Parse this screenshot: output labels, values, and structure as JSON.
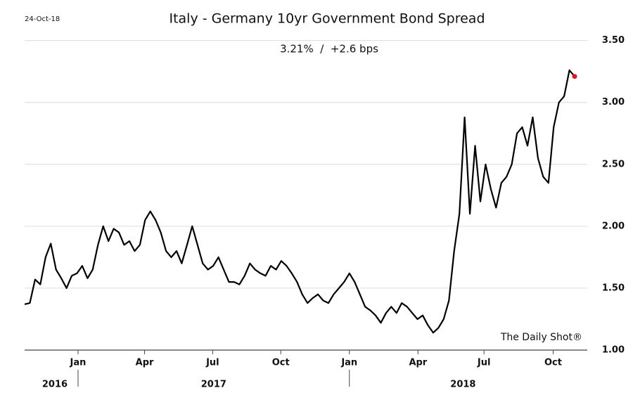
{
  "chart_data": {
    "type": "line",
    "date_label": "24-Oct-18",
    "title": "Italy - Germany 10yr Government Bond Spread",
    "subtitle": "3.21%  /  +2.6 bps",
    "source": "The Daily Shot®",
    "categories": [
      null,
      null,
      null,
      null,
      null,
      null,
      null,
      null,
      null,
      null,
      null,
      null,
      null,
      null,
      null,
      null,
      null,
      null,
      null,
      null,
      null,
      null,
      null,
      null,
      null,
      null,
      null,
      null,
      null,
      null,
      null,
      null,
      null,
      null,
      null,
      null,
      null,
      null,
      null,
      null,
      null,
      null,
      null,
      null,
      null,
      null,
      null,
      null,
      null,
      null,
      null,
      null,
      null,
      null,
      null,
      null,
      null,
      null,
      null,
      null,
      null,
      null,
      null,
      null,
      null,
      null,
      null,
      null,
      null,
      null,
      null,
      null,
      null,
      null,
      null,
      null,
      null,
      null,
      null,
      null,
      null,
      null,
      null,
      null,
      null,
      null,
      null,
      null,
      null,
      null,
      null,
      null,
      null,
      null,
      null,
      null,
      null,
      null,
      null,
      null,
      null,
      null,
      null,
      null,
      null,
      null
    ],
    "series": [
      {
        "name": "Italy - Germany 10yr spread",
        "color": "#000000",
        "last_point_color": "#e8141c",
        "values": [
          1.37,
          1.38,
          1.57,
          1.53,
          1.75,
          1.86,
          1.65,
          1.58,
          1.5,
          1.6,
          1.62,
          1.68,
          1.58,
          1.65,
          1.85,
          2.0,
          1.88,
          1.98,
          1.95,
          1.85,
          1.88,
          1.8,
          1.85,
          2.05,
          2.12,
          2.05,
          1.95,
          1.8,
          1.75,
          1.8,
          1.7,
          1.85,
          2.0,
          1.85,
          1.7,
          1.65,
          1.68,
          1.75,
          1.65,
          1.55,
          1.55,
          1.53,
          1.6,
          1.7,
          1.65,
          1.62,
          1.6,
          1.68,
          1.65,
          1.72,
          1.68,
          1.62,
          1.55,
          1.45,
          1.38,
          1.42,
          1.45,
          1.4,
          1.38,
          1.45,
          1.5,
          1.55,
          1.62,
          1.55,
          1.45,
          1.35,
          1.32,
          1.28,
          1.22,
          1.3,
          1.35,
          1.3,
          1.38,
          1.35,
          1.3,
          1.25,
          1.28,
          1.2,
          1.14,
          1.18,
          1.25,
          1.4,
          1.8,
          2.1,
          2.88,
          2.1,
          2.65,
          2.2,
          2.5,
          2.3,
          2.15,
          2.35,
          2.4,
          2.5,
          2.75,
          2.8,
          2.65,
          2.88,
          2.55,
          2.4,
          2.35,
          2.8,
          3.0,
          3.05,
          3.26,
          3.21
        ]
      }
    ],
    "ylim": [
      1.0,
      3.6
    ],
    "yticks": [
      {
        "value": 1.0,
        "label": "1.00"
      },
      {
        "value": 1.5,
        "label": "1.50"
      },
      {
        "value": 2.0,
        "label": "2.00"
      },
      {
        "value": 2.5,
        "label": "2.50"
      },
      {
        "value": 3.0,
        "label": "3.00"
      },
      {
        "value": 3.5,
        "label": "3.50"
      }
    ],
    "xlim": [
      0,
      105.4
    ],
    "xticks": [
      {
        "value": 10.2,
        "label": "Jan"
      },
      {
        "value": 22.9,
        "label": "Apr"
      },
      {
        "value": 35.9,
        "label": "Jul"
      },
      {
        "value": 48.9,
        "label": "Oct"
      },
      {
        "value": 62.0,
        "label": "Jan"
      },
      {
        "value": 75.1,
        "label": "Apr"
      },
      {
        "value": 87.7,
        "label": "Jul"
      },
      {
        "value": 100.9,
        "label": "Oct"
      }
    ],
    "year_ticks": [
      {
        "value": 0,
        "label": "2016"
      },
      {
        "value": 10.2,
        "label": "2017"
      },
      {
        "value": 62.0,
        "label": "2018"
      }
    ],
    "grid": true
  }
}
